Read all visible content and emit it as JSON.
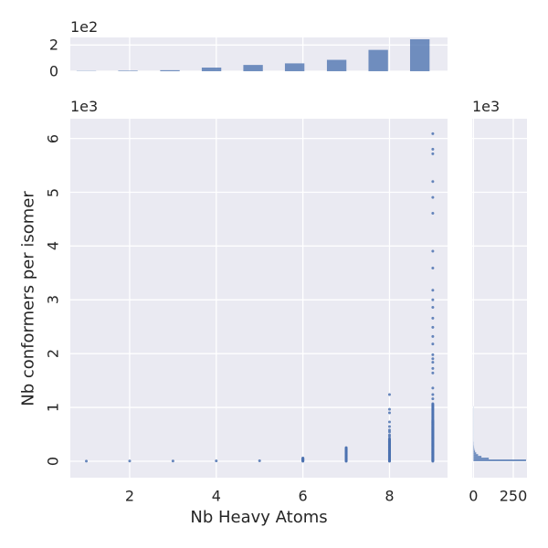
{
  "figure": {
    "background": "#ffffff",
    "axes_background": "#eaeaf2",
    "grid_color": "#ffffff",
    "accent_color": "#4c72b0",
    "text_color": "#262626"
  },
  "chart_data": {
    "type": "scatter",
    "subtype": "jointplot-with-marginal-histograms",
    "main": {
      "type": "scatter",
      "xlabel": "Nb Heavy Atoms",
      "ylabel": "Nb conformers per isomer",
      "x_ticks": [
        2,
        4,
        6,
        8
      ],
      "y_ticks": [
        0,
        1,
        2,
        3,
        4,
        5,
        6
      ],
      "y_offset_text": "1e3",
      "y_scale_factor": 1000,
      "xlim": [
        0.63,
        9.34
      ],
      "ylim": [
        -306,
        6367
      ],
      "grid": true,
      "series": [
        {
          "x": 1,
          "points": [
            2
          ]
        },
        {
          "x": 2,
          "points": [
            3
          ]
        },
        {
          "x": 3,
          "points": [
            4
          ]
        },
        {
          "x": 4,
          "points": [
            5
          ]
        },
        {
          "x": 5,
          "points": [
            8
          ]
        },
        {
          "x": 6,
          "points": [],
          "dense": [
            [
              0,
              60,
              5
            ]
          ]
        },
        {
          "x": 7,
          "points": [],
          "dense": [
            [
              0,
              255,
              7
            ]
          ]
        },
        {
          "x": 8,
          "points": [
            460,
            490,
            545,
            580,
            645,
            730,
            900,
            965,
            1240
          ],
          "dense": [
            [
              0,
              420,
              6
            ]
          ]
        },
        {
          "x": 9,
          "points": [
            1160,
            1240,
            1360,
            1640,
            1725,
            1840,
            1905,
            1980,
            2180,
            2320,
            2490,
            2660,
            2860,
            3000,
            3180,
            3590,
            3905,
            4610,
            4905,
            5200,
            5715,
            5800,
            6090
          ],
          "dense": [
            [
              0,
              760,
              8
            ],
            [
              770,
              1070,
              15
            ]
          ]
        }
      ]
    },
    "top_marginal": {
      "type": "bar",
      "role": "histogram-of-x",
      "bar_centers": [
        1.0,
        1.96,
        2.93,
        3.89,
        4.85,
        5.81,
        6.78,
        7.74,
        8.7
      ],
      "bar_width": 0.45,
      "counts": [
        2,
        4,
        8,
        28,
        48,
        60,
        87,
        163,
        244
      ],
      "y_ticks": [
        0,
        2
      ],
      "y_offset_text": "1e2",
      "y_scale_factor": 100,
      "ylim": [
        0,
        258
      ]
    },
    "right_marginal": {
      "type": "bar",
      "role": "histogram-of-y",
      "bin_size": 33,
      "counts": [
        330,
        96,
        50,
        29,
        17,
        10,
        6,
        4,
        3,
        2,
        2,
        1,
        1,
        1,
        1,
        1,
        1,
        1,
        1,
        1,
        1,
        1,
        1,
        1,
        1,
        1,
        1,
        1,
        1,
        1,
        1
      ],
      "x_ticks": [
        0,
        250
      ],
      "y_offset_text": "1e3",
      "xlim": [
        -8,
        336
      ]
    }
  }
}
